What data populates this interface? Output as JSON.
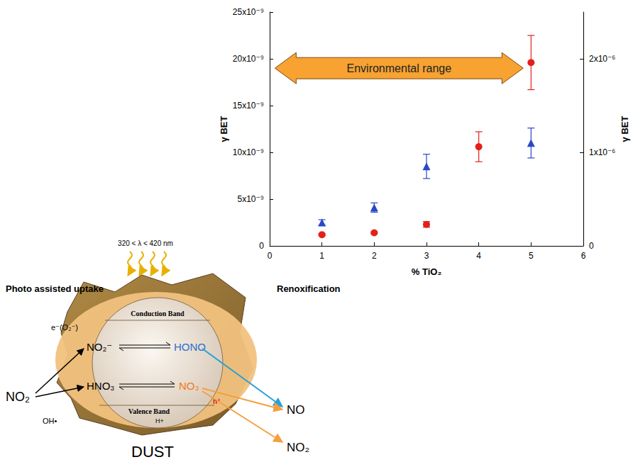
{
  "chart_data": {
    "type": "scatter",
    "x_label": "% TiO₂",
    "y_label": "γ BET",
    "y2_label": "γ BET",
    "xlim": [
      0,
      6
    ],
    "xticks": [
      0,
      1,
      2,
      3,
      4,
      5,
      6
    ],
    "ylim": [
      0,
      2.5e-08
    ],
    "yticks": [
      0,
      {
        "value": 5e-09,
        "label": "5x10⁻⁹"
      },
      {
        "value": 1e-08,
        "label": "10x10⁻⁹"
      },
      {
        "value": 1.5e-08,
        "label": "15x10⁻⁹"
      },
      {
        "value": 2e-08,
        "label": "20x10⁻⁹"
      },
      {
        "value": 2.5e-08,
        "label": "25x10⁻⁹"
      }
    ],
    "y2lim": [
      0,
      2.5e-06
    ],
    "y2ticks": [
      0,
      {
        "value": 1e-06,
        "label": "1x10⁻⁶"
      },
      {
        "value": 2e-06,
        "label": "2x10⁻⁶"
      }
    ],
    "grid": false,
    "series": [
      {
        "color": "#e3201b",
        "marker": "circle",
        "x": [
          1,
          2,
          3,
          4,
          5
        ],
        "values": [
          1.2e-09,
          1.4e-09,
          2.3e-09,
          1.06e-08,
          1.96e-08
        ],
        "errors": [
          1e-10,
          1e-10,
          3e-10,
          1.6e-09,
          2.9e-09
        ]
      },
      {
        "color": "#2a48c6",
        "marker": "triangle",
        "axis": "y2",
        "x": [
          1,
          2,
          3,
          5
        ],
        "values": [
          2.5e-07,
          4.1e-07,
          8.5e-07,
          1.1e-06
        ],
        "errors": [
          3e-08,
          5e-08,
          1.3e-07,
          1.6e-07
        ]
      }
    ],
    "annotation": {
      "text": "Environmental range",
      "x": [
        0.1,
        4.85
      ],
      "y": 1.9e-08
    }
  },
  "diagram": {
    "light": "320 < λ < 420 nm",
    "left_title": "Photo assisted uptake",
    "right_title": "Renoxification",
    "conduction_band": "Conduction Band",
    "valence_band": "Valence Band",
    "electron": "e⁻(O₂⁻)",
    "hydroxyl": "OH•",
    "proton": "H+",
    "hole": "h⁺",
    "reactant": "NO₂",
    "nitrite": "NO₂⁻",
    "hono": "HONO",
    "nitric": "HNO₃",
    "nitrate": "NO₃",
    "products": [
      "NO",
      "NO₂"
    ],
    "particle": "DUST"
  }
}
